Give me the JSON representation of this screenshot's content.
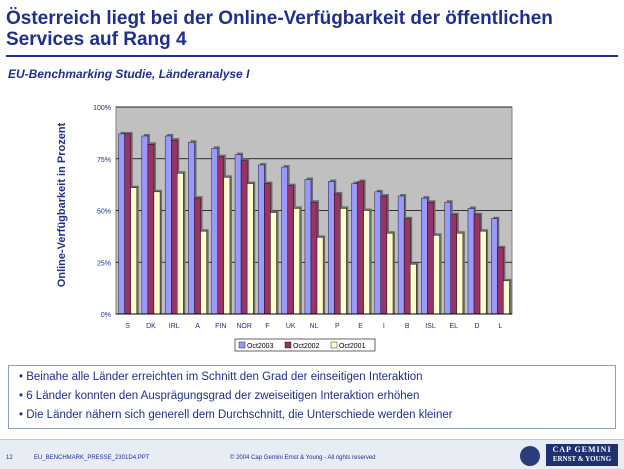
{
  "header": {
    "title_line1": "Österreich liegt bei der Online-Verfügbarkeit der öffentlichen",
    "title_line2": "Services auf Rang 4",
    "subtitle": "EU-Benchmarking Studie, Länderanalyse I"
  },
  "chart_data": {
    "type": "bar",
    "ylabel": "Online-Verfügbarkeit in Prozent",
    "categories": [
      "S",
      "DK",
      "IRL",
      "A",
      "FIN",
      "NOR",
      "F",
      "UK",
      "NL",
      "P",
      "E",
      "I",
      "B",
      "ISL",
      "EL",
      "D",
      "L"
    ],
    "ylim": [
      0,
      100
    ],
    "yticks": [
      "0%",
      "25%",
      "50%",
      "75%",
      "100%"
    ],
    "legend_position": "bottom",
    "grid": true,
    "series": [
      {
        "name": "Oct2003",
        "color": "#9999ff",
        "values": [
          87,
          86,
          86,
          83,
          80,
          77,
          72,
          71,
          65,
          64,
          63,
          59,
          57,
          56,
          54,
          51,
          46
        ]
      },
      {
        "name": "Oct2002",
        "color": "#993366",
        "values": [
          87,
          82,
          84,
          56,
          76,
          74,
          63,
          62,
          54,
          58,
          64,
          57,
          46,
          54,
          48,
          48,
          32
        ]
      },
      {
        "name": "Oct2001",
        "color": "#ffffcc",
        "values": [
          61,
          59,
          68,
          40,
          66,
          63,
          49,
          51,
          37,
          51,
          50,
          39,
          24,
          38,
          39,
          40,
          16
        ]
      }
    ]
  },
  "bullets": [
    "• Beinahe alle Länder erreichten im Schnitt den Grad der einseitigen Interaktion",
    "• 6 Länder konnten den Ausprägungsgrad der zweiseitigen Interaktion erhöhen",
    "• Die Länder nähern sich generell dem Durchschnitt, die Unterschiede werden kleiner"
  ],
  "footer": {
    "page": "12",
    "file": "EU_BENCHMARK_PRESSE_2301D4.PPT",
    "copyright": "© 2004 Cap Gemini Ernst & Young - All rights reserved",
    "logo_line1": "CAP GEMINI",
    "logo_line2": "ERNST & YOUNG"
  }
}
